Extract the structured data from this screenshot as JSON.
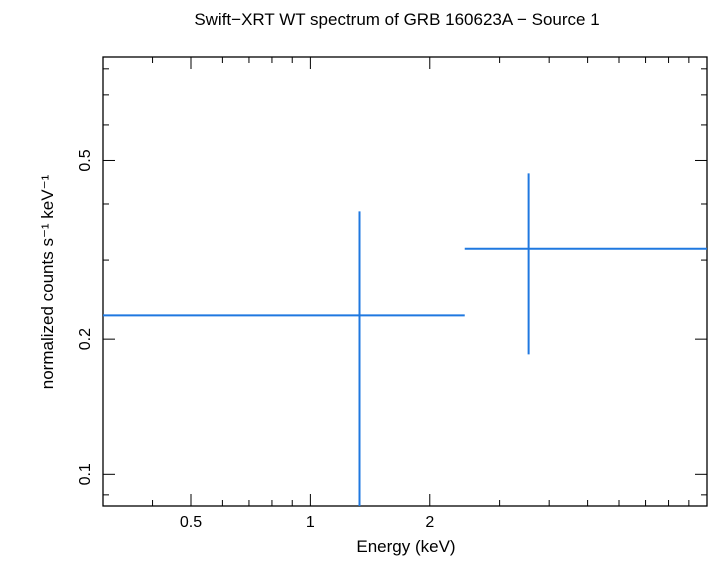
{
  "chart_data": {
    "type": "scatter",
    "title": "Swift−XRT WT spectrum of GRB 160623A − Source 1",
    "xlabel": "Energy (keV)",
    "ylabel": "normalized counts s⁻¹ keV⁻¹",
    "x_scale": "log",
    "y_scale": "log",
    "xlim": [
      0.3,
      10.0
    ],
    "ylim": [
      0.085,
      0.85
    ],
    "x_tick_labels": [
      {
        "value": 0.5,
        "label": "0.5"
      },
      {
        "value": 1,
        "label": "1"
      },
      {
        "value": 2,
        "label": "2"
      }
    ],
    "y_tick_labels": [
      {
        "value": 0.1,
        "label": "0.1"
      },
      {
        "value": 0.2,
        "label": "0.2"
      },
      {
        "value": 0.5,
        "label": "0.5"
      }
    ],
    "grid": false,
    "series": [
      {
        "color": "#1f78e0",
        "points": [
          {
            "x": 1.33,
            "x_lo": 0.3,
            "x_hi": 2.45,
            "y": 0.226,
            "y_lo": 0.085,
            "y_hi": 0.385
          },
          {
            "x": 3.55,
            "x_lo": 2.45,
            "x_hi": 10.0,
            "y": 0.318,
            "y_lo": 0.185,
            "y_hi": 0.468
          }
        ]
      }
    ]
  }
}
